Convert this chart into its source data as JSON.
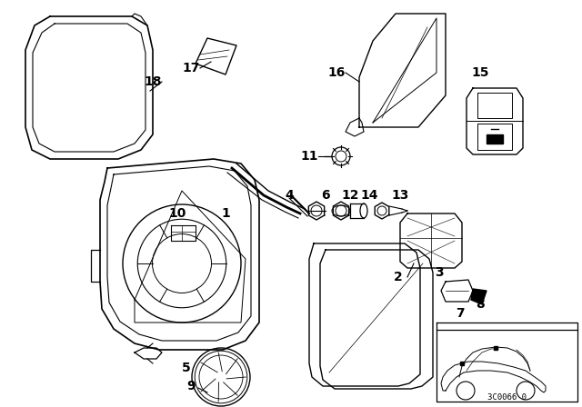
{
  "bg_color": "#ffffff",
  "line_color": "#000000",
  "fig_width": 6.4,
  "fig_height": 4.48,
  "dpi": 100,
  "diagram_code": "3C0066 0"
}
